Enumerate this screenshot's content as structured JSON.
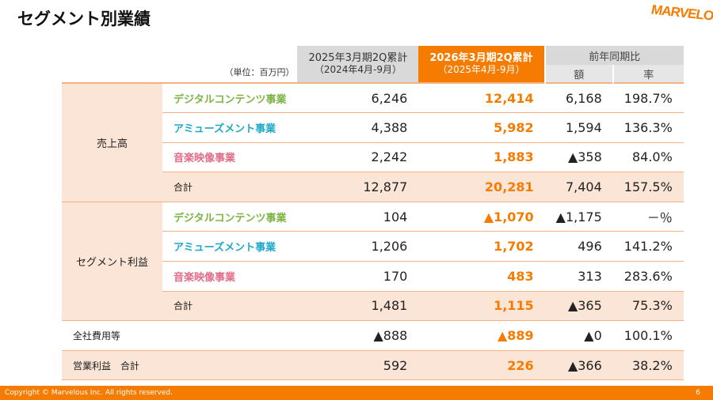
{
  "title": "セグメント別業績",
  "logo": "MARVELOUS!",
  "header": {
    "unit": "（単位：百万円）",
    "prev": "2025年3月期2Q累計",
    "prev_sub": "（2024年4月-9月）",
    "cur": "2026年3月期2Q累計",
    "cur_sub": "（2025年4月-9月）",
    "yoy": "前年同期比",
    "amount": "額",
    "rate": "率"
  },
  "colors": {
    "accent": "#f57c00",
    "digital": "#7cb342",
    "amusement": "#1fa8c9",
    "music": "#e06c8a",
    "peach": "#fbe5d6"
  },
  "sales": {
    "label": "売上高",
    "rows": [
      {
        "name": "デジタルコンテンツ事業",
        "prev": "6,246",
        "cur": "12,414",
        "amt": "6,168",
        "rate": "198.7%"
      },
      {
        "name": "アミューズメント事業",
        "prev": "4,388",
        "cur": "5,982",
        "amt": "1,594",
        "rate": "136.3%"
      },
      {
        "name": "音楽映像事業",
        "prev": "2,242",
        "cur": "1,883",
        "amt": "▲358",
        "rate": "84.0%"
      },
      {
        "name": "合計",
        "prev": "12,877",
        "cur": "20,281",
        "amt": "7,404",
        "rate": "157.5%"
      }
    ]
  },
  "profit": {
    "label": "セグメント利益",
    "rows": [
      {
        "name": "デジタルコンテンツ事業",
        "prev": "104",
        "cur": "▲1,070",
        "amt": "▲1,175",
        "rate": "－％"
      },
      {
        "name": "アミューズメント事業",
        "prev": "1,206",
        "cur": "1,702",
        "amt": "496",
        "rate": "141.2%"
      },
      {
        "name": "音楽映像事業",
        "prev": "170",
        "cur": "483",
        "amt": "313",
        "rate": "283.6%"
      },
      {
        "name": "合計",
        "prev": "1,481",
        "cur": "1,115",
        "amt": "▲365",
        "rate": "75.3%"
      }
    ]
  },
  "corp": {
    "name": "全社費用等",
    "prev": "▲888",
    "cur": "▲889",
    "amt": "▲0",
    "rate": "100.1%"
  },
  "op": {
    "name": "営業利益　合計",
    "prev": "592",
    "cur": "226",
    "amt": "▲366",
    "rate": "38.2%"
  },
  "footer": {
    "copyright": "Copyright © Marvelous Inc. All rights reserved.",
    "page": "6"
  }
}
